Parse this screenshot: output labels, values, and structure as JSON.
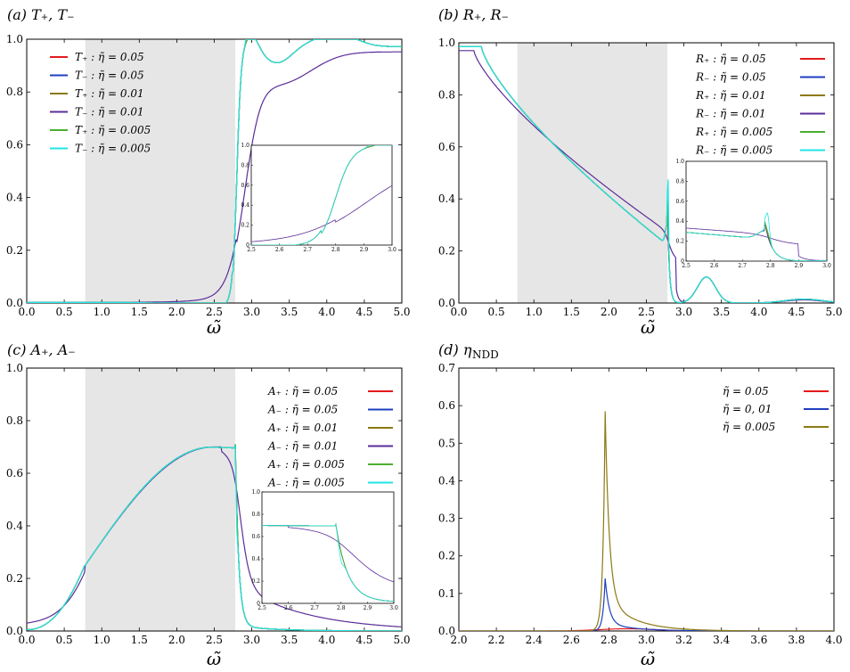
{
  "panels": [
    {
      "id": "a",
      "title": "(a) T₊, T₋",
      "xlabel": "ω̃",
      "type": "line",
      "xlim": [
        0,
        5
      ],
      "ylim": [
        0,
        1
      ],
      "xticks": [
        "0.0",
        "0.5",
        "1.0",
        "1.5",
        "2.0",
        "2.5",
        "3.0",
        "3.5",
        "4.0",
        "4.5",
        "5.0"
      ],
      "yticks": [
        "0.0",
        "0.2",
        "0.4",
        "0.6",
        "0.8",
        "1.0"
      ],
      "shade": [
        0.78,
        2.78
      ],
      "legend_position": "top-left",
      "series": [
        {
          "name": "T₊ : η̃ = 0.05",
          "color": "#e41a1c",
          "kind": "T_sharp"
        },
        {
          "name": "T₋ : η̃ = 0.05",
          "color": "#1f3fbf",
          "kind": "T_sharp"
        },
        {
          "name": "T₊ : η̃ = 0.01",
          "color": "#8c7a12",
          "kind": "T_sharp"
        },
        {
          "name": "T₋ : η̃ = 0.01",
          "color": "#5b2d9a",
          "kind": "T_smooth"
        },
        {
          "name": "T₊ : η̃ = 0.005",
          "color": "#4caf30",
          "kind": "T_sharp"
        },
        {
          "name": "T₋ : η̃ = 0.005",
          "color": "#22e5e5",
          "kind": "T_spike"
        }
      ],
      "inset": {
        "xlim": [
          2.5,
          3.0
        ],
        "ylim": [
          0,
          1
        ],
        "xticks": [
          "2.5",
          "2.6",
          "2.7",
          "2.8",
          "2.9",
          "3.0"
        ],
        "yticks": [
          "0",
          "0.2",
          "0.4",
          "0.6",
          "0.8",
          "1.0"
        ]
      }
    },
    {
      "id": "b",
      "title": "(b) R₊, R₋",
      "xlabel": "ω̃",
      "type": "line",
      "xlim": [
        0,
        5
      ],
      "ylim": [
        0,
        1
      ],
      "xticks": [
        "0.0",
        "0.5",
        "1.0",
        "1.5",
        "2.0",
        "2.5",
        "3.0",
        "3.5",
        "4.0",
        "4.5",
        "5.0"
      ],
      "yticks": [
        "0.0",
        "0.2",
        "0.4",
        "0.6",
        "0.8",
        "1.0"
      ],
      "shade": [
        0.78,
        2.78
      ],
      "legend_position": "top-right",
      "series": [
        {
          "name": "R₊ : η̃ = 0.05",
          "color": "#e41a1c",
          "kind": "R_a"
        },
        {
          "name": "R₋ : η̃ = 0.05",
          "color": "#1f3fbf",
          "kind": "R_a"
        },
        {
          "name": "R₊ : η̃ = 0.01",
          "color": "#8c7a12",
          "kind": "R_b"
        },
        {
          "name": "R₋ : η̃ = 0.01",
          "color": "#5b2d9a",
          "kind": "R_smooth"
        },
        {
          "name": "R₊ : η̃ = 0.005",
          "color": "#4caf30",
          "kind": "R_c"
        },
        {
          "name": "R₋ : η̃ = 0.005",
          "color": "#22e5e5",
          "kind": "R_spike"
        }
      ],
      "inset": {
        "xlim": [
          2.5,
          3.0
        ],
        "ylim": [
          0,
          1
        ],
        "xticks": [
          "2.5",
          "2.6",
          "2.7",
          "2.8",
          "2.9",
          "3.0"
        ],
        "yticks": [
          "0",
          "0.2",
          "0.4",
          "0.6",
          "0.8",
          "1.0"
        ]
      }
    },
    {
      "id": "c",
      "title": "(c) A₊, A₋",
      "xlabel": "ω̃",
      "type": "line",
      "xlim": [
        0,
        5
      ],
      "ylim": [
        0,
        1
      ],
      "xticks": [
        "0.0",
        "0.5",
        "1.0",
        "1.5",
        "2.0",
        "2.5",
        "3.0",
        "3.5",
        "4.0",
        "4.5",
        "5.0"
      ],
      "yticks": [
        "0.0",
        "0.2",
        "0.4",
        "0.6",
        "0.8",
        "1.0"
      ],
      "shade": [
        0.78,
        2.78
      ],
      "legend_position": "top-right",
      "series": [
        {
          "name": "A₊ : η̃ = 0.05",
          "color": "#e41a1c",
          "kind": "A_sharp"
        },
        {
          "name": "A₋ : η̃ = 0.05",
          "color": "#1f3fbf",
          "kind": "A_sharp"
        },
        {
          "name": "A₊ : η̃ = 0.01",
          "color": "#8c7a12",
          "kind": "A_sharp"
        },
        {
          "name": "A₋ : η̃ = 0.01",
          "color": "#5b2d9a",
          "kind": "A_smooth"
        },
        {
          "name": "A₊ : η̃ = 0.005",
          "color": "#4caf30",
          "kind": "A_sharp"
        },
        {
          "name": "A₋ : η̃ = 0.005",
          "color": "#22e5e5",
          "kind": "A_spike"
        }
      ],
      "inset": {
        "xlim": [
          2.5,
          3.0
        ],
        "ylim": [
          0,
          1
        ],
        "xticks": [
          "2.5",
          "2.6",
          "2.7",
          "2.8",
          "2.9",
          "3.0"
        ],
        "yticks": [
          "0",
          "0.2",
          "0.4",
          "0.6",
          "0.8",
          "1.0"
        ]
      }
    },
    {
      "id": "d",
      "title": "(d) η",
      "title_sub": "NDD",
      "xlabel": "ω̃",
      "type": "line",
      "xlim": [
        2.0,
        4.0
      ],
      "ylim": [
        0,
        0.7
      ],
      "xticks": [
        "2.0",
        "2.2",
        "2.4",
        "2.6",
        "2.8",
        "3.0",
        "3.2",
        "3.4",
        "3.6",
        "3.8",
        "4.0"
      ],
      "yticks": [
        "0.0",
        "0.1",
        "0.2",
        "0.3",
        "0.4",
        "0.5",
        "0.6",
        "0.7"
      ],
      "legend_position": "top-right",
      "series": [
        {
          "name": "η̃ = 0.05",
          "color": "#e41a1c",
          "peak": 0.006
        },
        {
          "name": "η̃ = 0, 01",
          "color": "#1f3fbf",
          "peak": 0.14
        },
        {
          "name": "η̃ = 0.005",
          "color": "#8c7a12",
          "peak": 0.585
        }
      ]
    }
  ]
}
